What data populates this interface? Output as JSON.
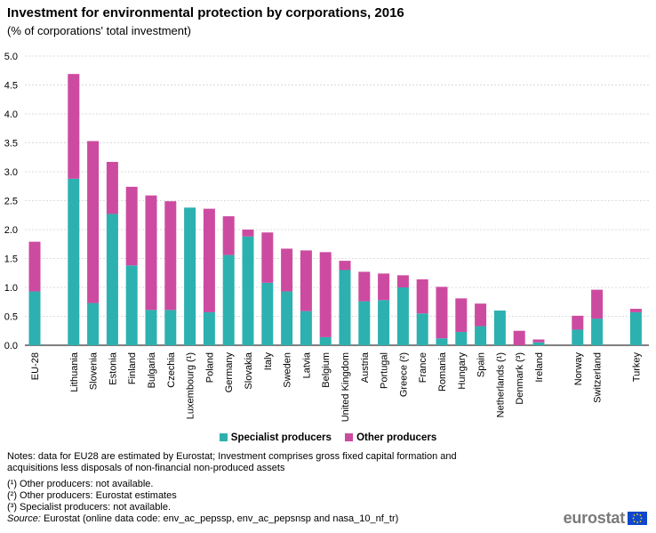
{
  "title": "Investment for environmental protection by corporations, 2016",
  "subtitle": "(% of corporations' total investment)",
  "chart_data": {
    "type": "bar",
    "stacked": true,
    "ylim": [
      0,
      5
    ],
    "yticks": [
      "0.0",
      "0.5",
      "1.0",
      "1.5",
      "2.0",
      "2.5",
      "3.0",
      "3.5",
      "4.0",
      "4.5",
      "5.0"
    ],
    "grid": true,
    "categories": [
      "EU-28",
      "Lithuania",
      "Slovenia",
      "Estonia",
      "Finland",
      "Bulgaria",
      "Czechia",
      "Luxembourg (¹)",
      "Poland",
      "Germany",
      "Slovakia",
      "Italy",
      "Sweden",
      "Latvia",
      "Belgium",
      "United Kingdom",
      "Austria",
      "Portugal",
      "Greece (²)",
      "France",
      "Romania",
      "Hungary",
      "Spain",
      "Netherlands (¹)",
      "Denmark (³)",
      "Ireland",
      "Norway",
      "Switzerland",
      "Turkey"
    ],
    "series": [
      {
        "name": "Specialist producers",
        "color": "#2cb1b0",
        "values": [
          0.93,
          2.88,
          0.73,
          2.27,
          1.38,
          0.61,
          0.61,
          2.38,
          0.57,
          1.56,
          1.88,
          1.08,
          0.93,
          0.59,
          0.14,
          1.3,
          0.76,
          0.78,
          1.0,
          0.55,
          0.12,
          0.23,
          0.33,
          0.6,
          0.0,
          0.05,
          0.27,
          0.46,
          0.57
        ]
      },
      {
        "name": "Other producers",
        "color": "#cc4ba0",
        "values": [
          0.86,
          1.81,
          2.8,
          0.9,
          1.36,
          1.98,
          1.88,
          0.0,
          1.79,
          0.67,
          0.12,
          0.87,
          0.74,
          1.05,
          1.47,
          0.16,
          0.51,
          0.46,
          0.21,
          0.59,
          0.89,
          0.58,
          0.39,
          0.0,
          0.25,
          0.05,
          0.24,
          0.5,
          0.06
        ]
      }
    ]
  },
  "legend": {
    "specialist": "Specialist producers",
    "other": "Other producers"
  },
  "notes": {
    "line1": "Notes: data for EU28 are estimated by Eurostat; Investment  comprises gross fixed capital formation and",
    "line2": "acquisitions less disposals of non-financial  non-produced assets",
    "fn1": "(¹) Other producers: not available.",
    "fn2": "(²) Other producers: Eurostat estimates",
    "fn3": "(³) Specialist producers: not available.",
    "source_label": "Source:",
    "source_text": " Eurostat (online data code: env_ac_pepssp, env_ac_pepsnsp and nasa_10_nf_tr)"
  },
  "logo": "eurostat",
  "colors": {
    "specialist": "#2cb1b0",
    "other": "#cc4ba0",
    "grid": "#cfcfcf"
  }
}
